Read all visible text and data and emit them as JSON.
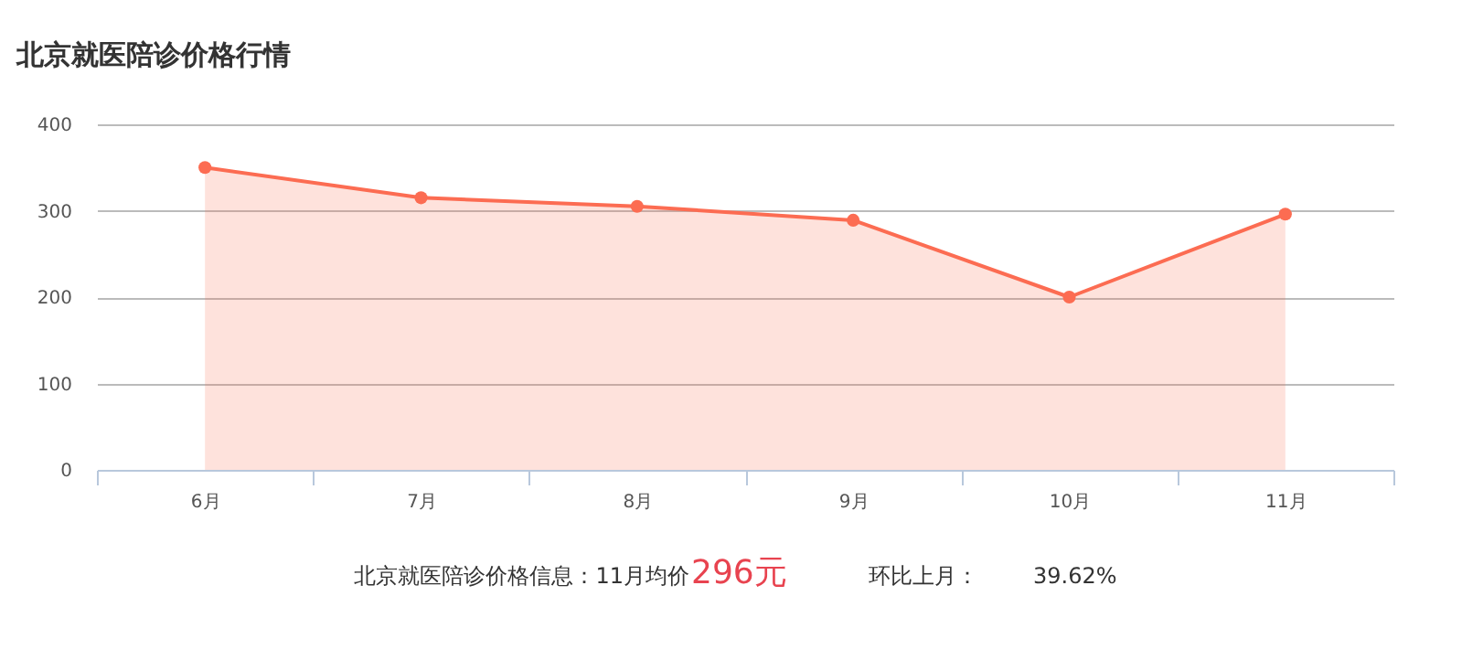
{
  "chart_data": {
    "type": "area",
    "title": "北京就医陪诊价格行情",
    "categories": [
      "6月",
      "7月",
      "8月",
      "9月",
      "10月",
      "11月"
    ],
    "series": [
      {
        "color": "#fc6c52",
        "values": [
          350,
          315,
          305,
          289,
          200,
          296
        ]
      }
    ],
    "ylim": [
      0,
      400
    ],
    "yticks": [
      0,
      100,
      200,
      300,
      400
    ],
    "grid": "y",
    "marker": "circle",
    "line_style": "solid",
    "annotations": [
      "北京就医陪诊价格信息：11月均价",
      "296元",
      "环比上月：",
      "39.62%"
    ]
  }
}
